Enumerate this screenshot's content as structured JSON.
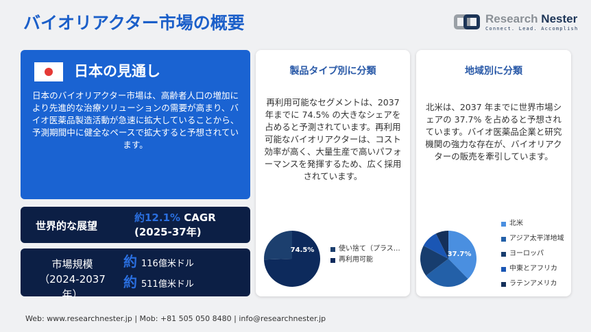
{
  "title": "バイオリアクター市場の概要",
  "logo": {
    "name1": "Research",
    "name2": "Nester",
    "tagline": "Connect. Lead. Accomplish"
  },
  "japan": {
    "heading": "日本の見通し",
    "flag_icon": "japan-flag-icon",
    "body": "日本のバイオリアクター市場は、高齢者人口の増加により先進的な治療ソリューションの需要が高まり、バイオ医薬品製造活動が急速に拡大していることから、予測期間中に健全なペースで拡大すると予想されています。"
  },
  "outlook": {
    "label": "世界的な展望",
    "value_accent": "約12.1%",
    "value_cagr": " CAGR",
    "period": "(2025-37年)"
  },
  "market_size": {
    "label": "市場規模",
    "period": "（2024-2037年）",
    "prefix": "約",
    "value1": "116億米ドル",
    "value2": "511億米ドル"
  },
  "product": {
    "heading": "製品タイプ別に分類",
    "body": "再利用可能なセグメントは、2037 年までに 74.5% の大きなシェアを占めると予測されています。再利用可能なバイオリアクターは、コスト効率が高く、大量生産で高いパフォーマンスを発揮するため、広く採用されています。"
  },
  "region": {
    "heading": "地域別に分類",
    "body": "北米は、2037 年までに世界市場シェアの 37.7% を占めると予想されています。バイオ医薬品企業と研究機関の強力な存在が、バイオリアクターの販売を牽引しています。"
  },
  "chart_data": [
    {
      "type": "pie",
      "categories": [
        "使い捨て（プラス…",
        "再利用可能"
      ],
      "values": [
        25.5,
        74.5
      ],
      "colors": [
        "#1c3f6e",
        "#0d2a5c"
      ],
      "label": "74.5%",
      "legend": "right"
    },
    {
      "type": "pie",
      "categories": [
        "北米",
        "アジア太平洋地域",
        "ヨーロッパ",
        "中東とアフリカ",
        "ラテンアメリカ"
      ],
      "values": [
        37.7,
        27,
        18,
        10,
        7.3
      ],
      "colors": [
        "#4a8fe0",
        "#2360a8",
        "#173d6e",
        "#1a56b4",
        "#14305a"
      ],
      "label": "37.7%",
      "legend": "right"
    }
  ],
  "footer": "Web: www.researchnester.jp | Mob: +81 505 050 8480 | info@researchnester.jp"
}
